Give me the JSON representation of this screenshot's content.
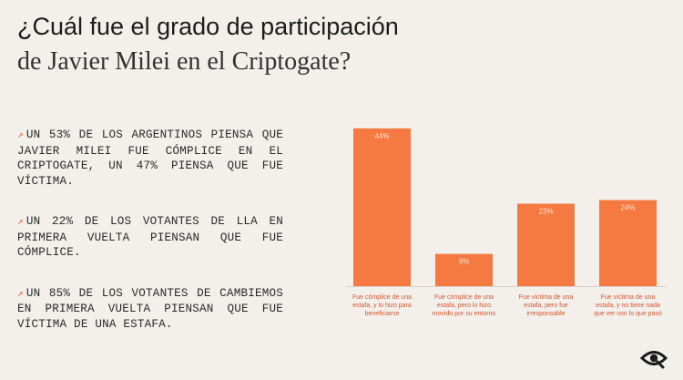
{
  "title": {
    "line1": "¿Cuál fue el grado de participación",
    "line2": "de Javier Milei en el Criptogate?"
  },
  "bullets": [
    "UN 53% DE LOS ARGENTINOS PIENSA QUE JAVIER MILEI FUE CÓMPLICE EN EL CRIPTOGATE, UN 47% PIENSA QUE FUE VÍCTIMA.",
    "UN 22% DE LOS VOTANTES DE LLA EN PRIMERA VUELTA PIENSAN QUE FUE CÓMPLICE.",
    "UN 85% DE LOS VOTANTES DE CAMBIEMOS EN PRIMERA VUELTA PIENSAN QUE FUE VÍCTIMA DE UNA ESTAFA."
  ],
  "bullet_icon": "north-east-arrow-icon",
  "logo_icon": "eye-logo-icon",
  "colors": {
    "bar": "#f47a42",
    "label": "#d5552c",
    "arrow": "#e0653d"
  },
  "chart_data": {
    "type": "bar",
    "title": "",
    "xlabel": "",
    "ylabel": "",
    "ylim": [
      0,
      46
    ],
    "grid": false,
    "categories": [
      [
        "Fue cómplice de una",
        "estafa, y lo hizo para",
        "beneficiarse"
      ],
      [
        "Fue cómplice de una",
        "estafa, pero lo hizo",
        "movido por su entorno"
      ],
      [
        "Fue víctima de una",
        "estafa, pero fue",
        "irresponsable"
      ],
      [
        "Fue víctima de una",
        "estafa, y no tiene nada",
        "que ver con lo que pasó"
      ]
    ],
    "values": [
      44,
      9,
      23,
      24
    ],
    "value_labels": [
      "44%",
      "9%",
      "23%",
      "24%"
    ]
  }
}
